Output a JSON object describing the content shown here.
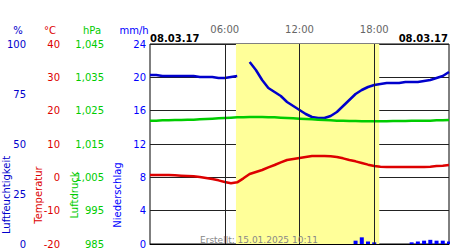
{
  "chart_data": {
    "type": "line",
    "grid": true,
    "xlim": [
      0,
      24
    ],
    "xticks": [
      {
        "value": 6,
        "label": "06:00"
      },
      {
        "value": 12,
        "label": "12:00"
      },
      {
        "value": 18,
        "label": "18:00"
      }
    ],
    "daylight": [
      6.9,
      18.4
    ],
    "annotations": {
      "date_left": "08.03.17",
      "date_right": "08.03.17",
      "footer": "Erstellt: 15.01.2025 10:11"
    },
    "x": [
      0,
      0.5,
      1,
      1.5,
      2,
      2.5,
      3,
      3.5,
      4,
      4.5,
      5,
      5.5,
      6,
      6.5,
      7,
      7.5,
      8,
      8.5,
      9,
      9.5,
      10,
      10.5,
      11,
      11.5,
      12,
      12.5,
      13,
      13.5,
      14,
      14.5,
      15,
      15.5,
      16,
      16.5,
      17,
      17.5,
      18,
      18.5,
      19,
      19.5,
      20,
      20.5,
      21,
      21.5,
      22,
      22.5,
      23,
      23.5,
      24
    ],
    "series": [
      {
        "name": "Luftfeuchtigkeit",
        "unit": "%",
        "type": "line",
        "color": "#0000cc",
        "ylim": [
          0,
          100
        ],
        "yticks": [
          0,
          25,
          50,
          75,
          100
        ],
        "values": [
          84.5,
          84.5,
          84,
          84,
          84,
          84,
          84,
          84,
          83.5,
          83.5,
          83.5,
          83,
          83,
          83.5,
          84,
          null,
          91,
          87,
          82,
          78,
          76,
          74,
          71,
          69,
          67,
          65,
          63.5,
          63,
          63,
          64,
          66,
          69,
          72,
          75,
          77,
          78.5,
          79.5,
          80,
          80.5,
          80.5,
          80.5,
          81,
          81,
          81,
          81.5,
          82,
          83,
          84,
          86
        ]
      },
      {
        "name": "Temperatur",
        "unit": "°C",
        "type": "line",
        "color": "#dd0000",
        "ylim": [
          -20,
          40
        ],
        "yticks": [
          -20,
          -10,
          0,
          10,
          20,
          30,
          40
        ],
        "values": [
          0.7,
          0.7,
          0.7,
          0.7,
          0.6,
          0.5,
          0.4,
          0.3,
          0.1,
          -0.2,
          -0.5,
          -0.9,
          -1.4,
          -1.8,
          -1.5,
          -0.3,
          1.0,
          1.6,
          2.2,
          3.0,
          3.7,
          4.5,
          5.2,
          5.5,
          5.8,
          6.1,
          6.4,
          6.4,
          6.4,
          6.3,
          6.1,
          5.7,
          5.2,
          4.8,
          4.3,
          3.8,
          3.4,
          3.2,
          3.1,
          3.1,
          3.1,
          3.1,
          3.1,
          3.1,
          3.1,
          3.2,
          3.4,
          3.5,
          3.7
        ]
      },
      {
        "name": "Luftdruck",
        "unit": "hPa",
        "type": "line",
        "color": "#00cc00",
        "ylim": [
          985,
          1045
        ],
        "yticks": [
          985,
          995,
          1005,
          1015,
          1025,
          1035,
          1045
        ],
        "values": [
          1022.0,
          1022.0,
          1022.1,
          1022.1,
          1022.2,
          1022.2,
          1022.3,
          1022.3,
          1022.4,
          1022.5,
          1022.6,
          1022.7,
          1022.8,
          1022.9,
          1023.0,
          1023.0,
          1023.1,
          1023.1,
          1023.1,
          1023.0,
          1023.0,
          1022.9,
          1022.8,
          1022.7,
          1022.6,
          1022.5,
          1022.4,
          1022.3,
          1022.2,
          1022.1,
          1022.0,
          1022.0,
          1021.9,
          1021.9,
          1021.8,
          1021.8,
          1021.8,
          1021.8,
          1021.8,
          1021.9,
          1021.9,
          1021.9,
          1022.0,
          1022.0,
          1022.0,
          1022.0,
          1022.1,
          1022.1,
          1022.2
        ]
      },
      {
        "name": "Niederschlag",
        "unit": "mm/h",
        "type": "bar",
        "color": "#0000ff",
        "ylim": [
          0,
          24
        ],
        "yticks": [
          0,
          4,
          8,
          12,
          16,
          20,
          24
        ],
        "values": [
          0,
          0,
          0,
          0,
          0,
          0,
          0,
          0,
          0,
          0,
          0,
          0,
          0,
          0,
          0,
          0,
          0,
          0,
          0,
          0,
          0,
          0,
          0,
          0,
          0,
          0,
          0,
          0,
          0,
          0,
          0,
          0,
          0,
          0.4,
          0.8,
          0.3,
          0.2,
          0,
          0,
          0,
          0,
          0,
          0.2,
          0.3,
          0.4,
          0.5,
          0.4,
          0.4,
          0.3
        ]
      }
    ]
  }
}
